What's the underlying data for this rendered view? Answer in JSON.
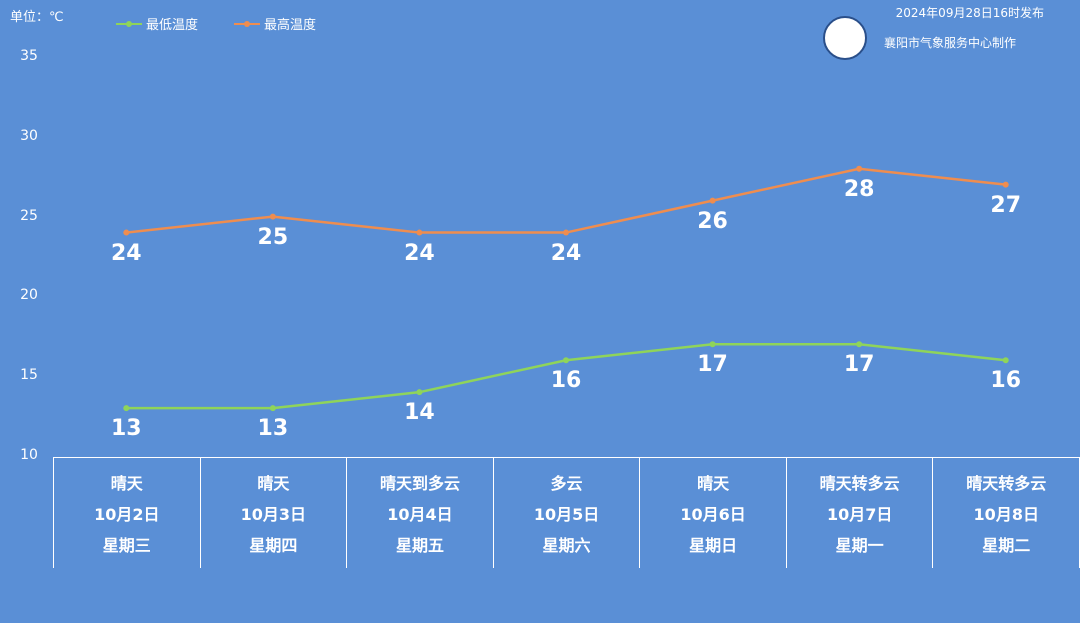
{
  "header": {
    "unit": "单位：℃",
    "issued": "2024年09月28日16时发布",
    "org": "襄阳市气象服务中心制作"
  },
  "colors": {
    "background": "#5a8fd6",
    "low": "#8fd45a",
    "high": "#ef8d4f"
  },
  "chart_data": {
    "type": "line",
    "title": "",
    "xlabel": "",
    "ylabel": "单位：℃",
    "ylim": [
      10,
      35
    ],
    "yticks": [
      10,
      15,
      20,
      25,
      30,
      35
    ],
    "categories": [
      "10月2日",
      "10月3日",
      "10月4日",
      "10月5日",
      "10月6日",
      "10月7日",
      "10月8日"
    ],
    "series": [
      {
        "name": "最低温度",
        "values": [
          13,
          13,
          14,
          16,
          17,
          17,
          16
        ]
      },
      {
        "name": "最高温度",
        "values": [
          24,
          25,
          24,
          24,
          26,
          28,
          27
        ]
      }
    ],
    "legend": "top-left"
  },
  "forecast": [
    {
      "weather": "晴天",
      "date": "10月2日",
      "weekday": "星期三"
    },
    {
      "weather": "晴天",
      "date": "10月3日",
      "weekday": "星期四"
    },
    {
      "weather": "晴天到多云",
      "date": "10月4日",
      "weekday": "星期五"
    },
    {
      "weather": "多云",
      "date": "10月5日",
      "weekday": "星期六"
    },
    {
      "weather": "晴天",
      "date": "10月6日",
      "weekday": "星期日"
    },
    {
      "weather": "晴天转多云",
      "date": "10月7日",
      "weekday": "星期一"
    },
    {
      "weather": "晴天转多云",
      "date": "10月8日",
      "weekday": "星期二"
    }
  ]
}
